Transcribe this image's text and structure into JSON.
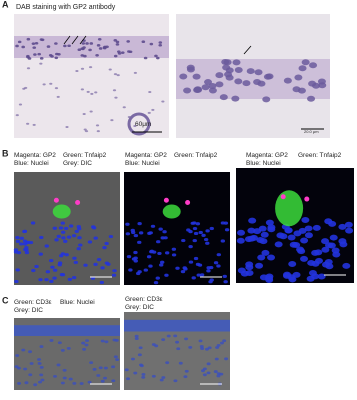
{
  "panels": [
    {
      "label": "A",
      "title": "DAB staining with GP2 antibody",
      "images": [
        {
          "scale_bar": "60μm"
        },
        {
          "scale_bar": "20.0 μm"
        }
      ]
    },
    {
      "label": "B",
      "images": [
        {
          "legend": [
            "Magenta: GP2",
            "Green: Tnfaip2",
            "Blue: Nuclei",
            "Grey: DIC"
          ]
        },
        {
          "legend": [
            "Magenta: GP2",
            "Green: Tnfaip2",
            "Blue: Nuclei"
          ]
        },
        {
          "legend": [
            "Magenta: GP2",
            "Green: Tnfaip2",
            "Blue: Nuclei"
          ]
        }
      ]
    },
    {
      "label": "C",
      "images": [
        {
          "legend": [
            "Green: CD3ε",
            "Blue: Nuclei",
            "Grey: DIC"
          ]
        },
        {
          "legend": [
            "Green: CD3ε",
            "Grey: DIC"
          ]
        }
      ]
    }
  ]
}
